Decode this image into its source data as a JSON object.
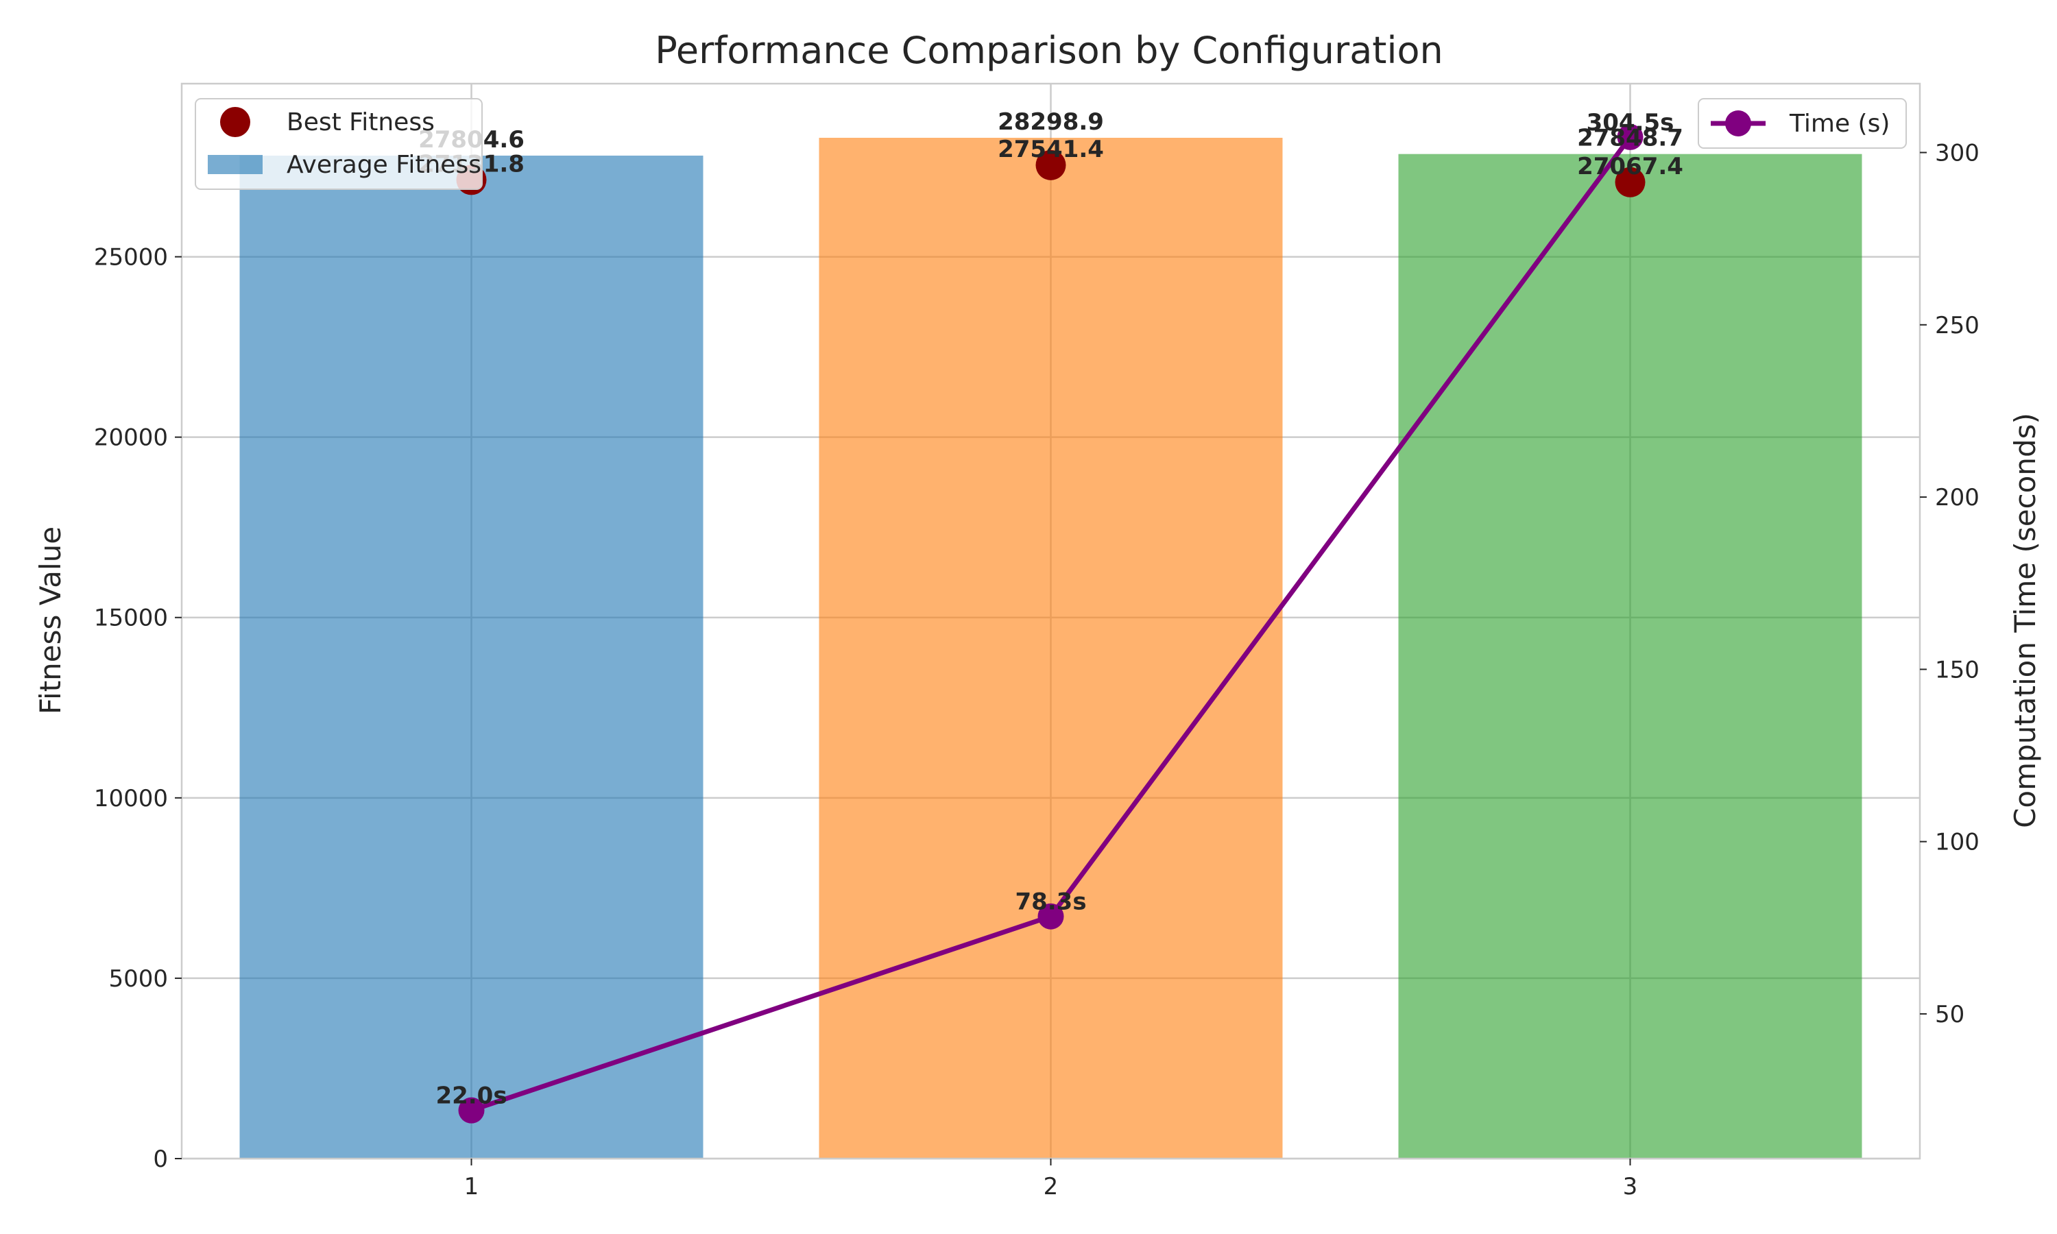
{
  "chart_data": {
    "type": "bar",
    "title": "Performance Comparison by Configuration",
    "categories": [
      "1",
      "2",
      "3"
    ],
    "xticks": [
      "1",
      "2",
      "3"
    ],
    "ylabel": "Fitness Value",
    "y2label": "Computation Time (seconds)",
    "ylim": [
      0,
      29800
    ],
    "y2lim": [
      8,
      320
    ],
    "yticks": [
      0,
      5000,
      10000,
      15000,
      20000,
      25000
    ],
    "y2ticks": [
      50,
      100,
      150,
      200,
      250,
      300
    ],
    "grid": true,
    "series": [
      {
        "name": "Average Fitness",
        "type": "bar",
        "values": [
          27804.6,
          28298.9,
          27848.7
        ],
        "labels": [
          "27804.6",
          "28298.9",
          "27848.7"
        ],
        "colors": [
          "#1f77b4",
          "#ff7f0e",
          "#2ca02c"
        ]
      },
      {
        "name": "Best Fitness",
        "type": "scatter",
        "values": [
          27131.8,
          27541.4,
          27067.4
        ],
        "labels": [
          "27131.8",
          "27541.4",
          "27067.4"
        ],
        "color": "#8b0000"
      },
      {
        "name": "Time (s)",
        "type": "line",
        "axis": "right",
        "values": [
          22.0,
          78.3,
          304.5
        ],
        "labels": [
          "22.0s",
          "78.3s",
          "304.5s"
        ],
        "color": "#800080"
      }
    ],
    "legend_left": {
      "placement": "upper-left",
      "entries": [
        "Best Fitness",
        "Average Fitness"
      ]
    },
    "legend_right": {
      "placement": "upper-right",
      "entries": [
        "Time (s)"
      ]
    }
  }
}
